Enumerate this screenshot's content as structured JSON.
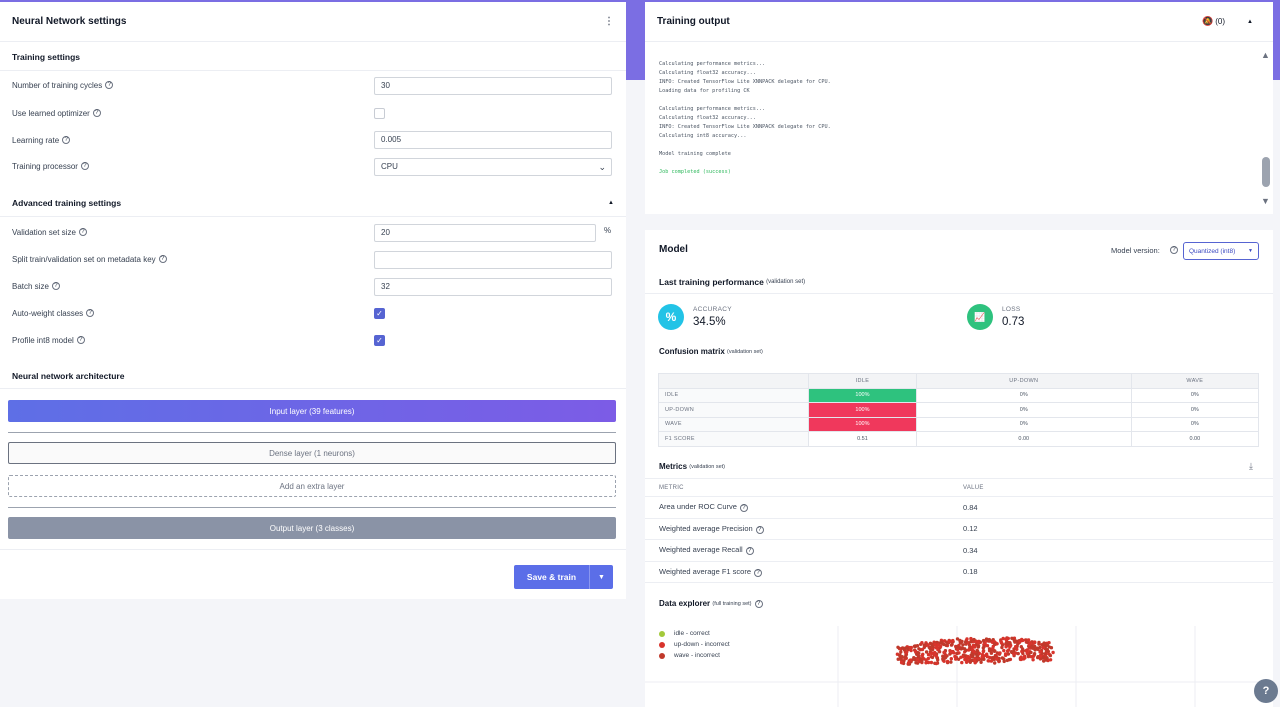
{
  "nn": {
    "title": "Neural Network settings",
    "training_settings_heading": "Training settings",
    "cycles_label": "Number of training cycles",
    "cycles_value": "30",
    "learned_optimizer_label": "Use learned optimizer",
    "learning_rate_label": "Learning rate",
    "learning_rate_value": "0.005",
    "processor_label": "Training processor",
    "processor_value": "CPU",
    "advanced_heading": "Advanced training settings",
    "validation_label": "Validation set size",
    "validation_value": "20",
    "validation_unit": "%",
    "split_label": "Split train/validation set on metadata key",
    "split_value": "",
    "batch_label": "Batch size",
    "batch_value": "32",
    "auto_weight_label": "Auto-weight classes",
    "profile_label": "Profile int8 model",
    "architecture_heading": "Neural network architecture",
    "input_layer": "Input layer (39 features)",
    "dense_layer": "Dense layer (1 neurons)",
    "add_layer": "Add an extra layer",
    "output_layer": "Output layer (3 classes)",
    "save_train": "Save & train"
  },
  "output": {
    "title": "Training output",
    "notifications": "(0)",
    "log": "Calculating performance metrics...\nCalculating float32 accuracy...\nINFO: Created TensorFlow Lite XNNPACK delegate for CPU.\nLoading data for profiling CK\n\nCalculating performance metrics...\nCalculating float32 accuracy...\nINFO: Created TensorFlow Lite XNNPACK delegate for CPU.\nCalculating int8 accuracy...\n\nModel training complete\n\n",
    "job_status": "Job completed (success)"
  },
  "model": {
    "title": "Model",
    "version_label": "Model version:",
    "version_value": "Quantized (int8)",
    "last_perf": "Last training performance",
    "validation_set": "(validation set)",
    "accuracy_label": "ACCURACY",
    "accuracy_value": "34.5%",
    "loss_label": "LOSS",
    "loss_value": "0.73",
    "confusion_title": "Confusion matrix",
    "metrics_title": "Metrics",
    "metric_col": "METRIC",
    "value_col": "VALUE",
    "explorer_title": "Data explorer",
    "explorer_sub": "(full training set)"
  },
  "confusion": {
    "columns": [
      "IDLE",
      "UP-DOWN",
      "WAVE"
    ],
    "rows": [
      {
        "label": "IDLE",
        "cells": [
          "100%",
          "0%",
          "0%"
        ]
      },
      {
        "label": "UP-DOWN",
        "cells": [
          "100%",
          "0%",
          "0%"
        ]
      },
      {
        "label": "WAVE",
        "cells": [
          "100%",
          "0%",
          "0%"
        ]
      }
    ],
    "f1": {
      "label": "F1 SCORE",
      "cells": [
        "0.51",
        "0.00",
        "0.00"
      ]
    }
  },
  "metrics": [
    {
      "name": "Area under ROC Curve",
      "value": "0.84"
    },
    {
      "name": "Weighted average Precision",
      "value": "0.12"
    },
    {
      "name": "Weighted average Recall",
      "value": "0.34"
    },
    {
      "name": "Weighted average F1 score",
      "value": "0.18"
    }
  ],
  "explorer_legend": [
    {
      "label": "idle - correct",
      "color": "#a3c93a"
    },
    {
      "label": "up-down - incorrect",
      "color": "#d8342c"
    },
    {
      "label": "wave - incorrect",
      "color": "#c0392b"
    }
  ],
  "colors": {
    "accent": "#5b6ee8",
    "correct": "#2ec27e",
    "incorrect": "#f0385c",
    "accuracy_icon": "#22c3e6",
    "loss_icon": "#2ec27e"
  }
}
